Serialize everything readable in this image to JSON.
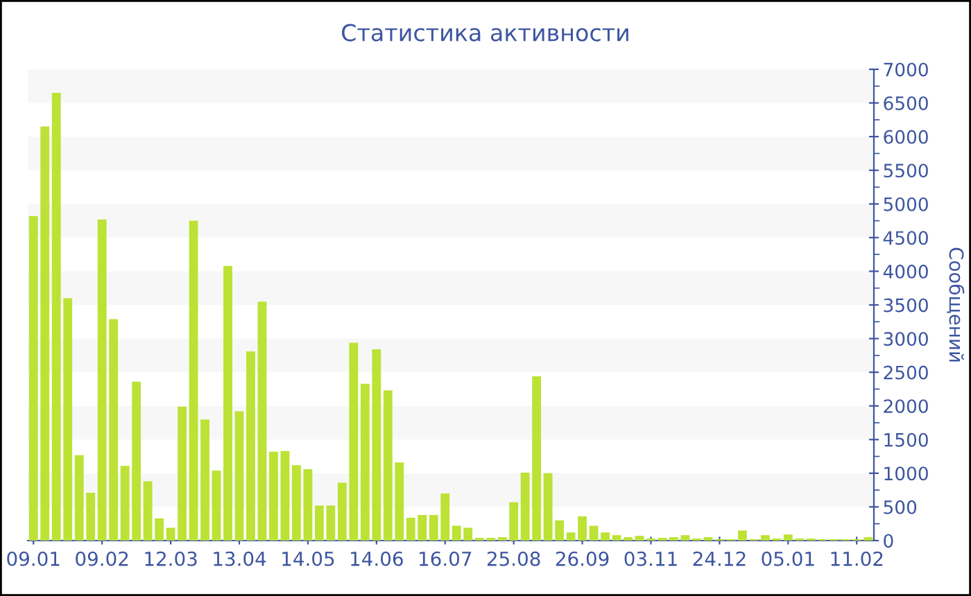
{
  "chart_data": {
    "type": "bar",
    "title": "Статистика активности",
    "ylabel": "Сообщений",
    "categories": [
      "09.01",
      null,
      null,
      null,
      null,
      null,
      "09.02",
      null,
      null,
      null,
      null,
      null,
      "12.03",
      null,
      null,
      null,
      null,
      null,
      "13.04",
      null,
      null,
      null,
      null,
      null,
      "14.05",
      null,
      null,
      null,
      null,
      null,
      "14.06",
      null,
      null,
      null,
      null,
      null,
      "16.07",
      null,
      null,
      null,
      null,
      null,
      "25.08",
      null,
      null,
      null,
      null,
      null,
      "26.09",
      null,
      null,
      null,
      null,
      null,
      "03.11",
      null,
      null,
      null,
      null,
      null,
      "24.12",
      null,
      null,
      null,
      null,
      null,
      "05.01",
      null,
      null,
      null,
      null,
      null,
      "11.02",
      null
    ],
    "values": [
      4820,
      6150,
      6650,
      3600,
      1270,
      710,
      4770,
      3290,
      1110,
      2360,
      880,
      330,
      190,
      1990,
      4750,
      1800,
      1040,
      4080,
      1920,
      2810,
      3550,
      1320,
      1330,
      1120,
      1060,
      520,
      520,
      860,
      2940,
      2330,
      2840,
      2230,
      1160,
      340,
      380,
      380,
      700,
      220,
      190,
      40,
      40,
      50,
      570,
      1010,
      2440,
      1000,
      300,
      120,
      360,
      220,
      120,
      80,
      50,
      70,
      30,
      40,
      50,
      80,
      30,
      50,
      20,
      20,
      150,
      20,
      80,
      30,
      90,
      30,
      30,
      20,
      20,
      20,
      20,
      50
    ],
    "color": "#bce236",
    "ylim": [
      0,
      7000
    ],
    "yticks": [
      0,
      500,
      1000,
      1500,
      2000,
      2500,
      3000,
      3500,
      4000,
      4500,
      5000,
      5500,
      6000,
      6500,
      7000
    ],
    "bands": [
      {
        "axis": "y",
        "from": 500,
        "to": 1000,
        "color": "#f7f7f7"
      },
      {
        "axis": "y",
        "from": 1500,
        "to": 2000,
        "color": "#f7f7f7"
      },
      {
        "axis": "y",
        "from": 2500,
        "to": 3000,
        "color": "#f7f7f7"
      },
      {
        "axis": "y",
        "from": 3500,
        "to": 4000,
        "color": "#f7f7f7"
      },
      {
        "axis": "y",
        "from": 4500,
        "to": 5000,
        "color": "#f7f7f7"
      },
      {
        "axis": "y",
        "from": 5500,
        "to": 6000,
        "color": "#f7f7f7"
      },
      {
        "axis": "y",
        "from": 6500,
        "to": 7000,
        "color": "#f7f7f7"
      }
    ]
  }
}
